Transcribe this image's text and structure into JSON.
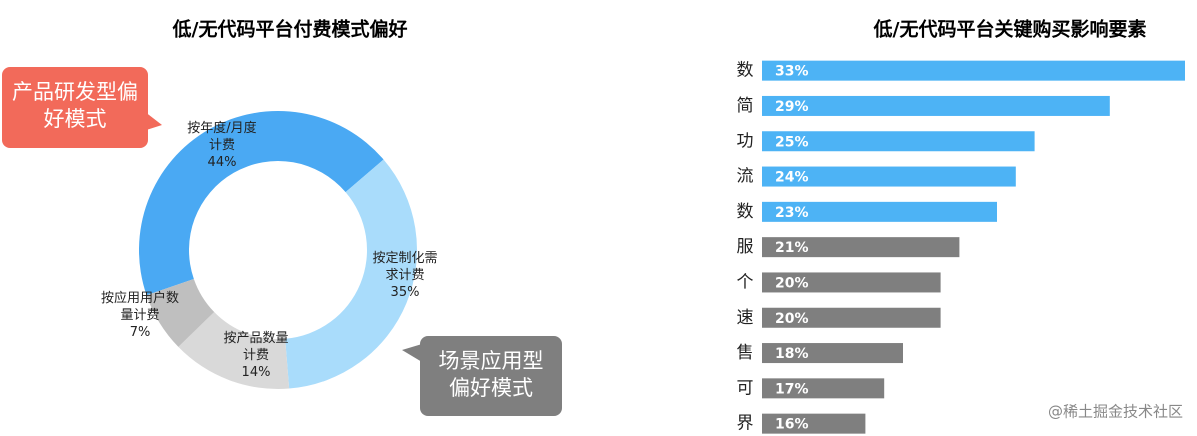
{
  "chart_data": [
    {
      "type": "donut",
      "title": "低/无代码平台付费模式偏好",
      "categories": [
        "按年度/月度计费",
        "按定制化需求计费",
        "按产品数量计费",
        "按应用用户数量计费"
      ],
      "values": [
        44,
        35,
        14,
        7
      ],
      "value_labels": [
        "44%",
        "35%",
        "14%",
        "7%"
      ],
      "colors": [
        "#4aa9f3",
        "#a9dcfb",
        "#d9d9d9",
        "#bfbfbf"
      ],
      "annotations": [
        {
          "text": "产品研发型偏好模式",
          "color": "#f26a5a"
        },
        {
          "text": "场景应用型偏好模式",
          "color": "#7f7f7f"
        }
      ]
    },
    {
      "type": "hbar",
      "title": "低/无代码平台关键购买影响要素",
      "categories": [
        "数",
        "简",
        "功",
        "流",
        "数",
        "服",
        "个",
        "速",
        "售",
        "可",
        "界"
      ],
      "values": [
        33,
        29,
        25,
        24,
        23,
        21,
        20,
        20,
        18,
        17,
        16
      ],
      "value_labels": [
        "33%",
        "29%",
        "25%",
        "24%",
        "23%",
        "21%",
        "20%",
        "20%",
        "18%",
        "17%",
        "16%"
      ],
      "colors": [
        "#4db3f5",
        "#4db3f5",
        "#4db3f5",
        "#4db3f5",
        "#4db3f5",
        "#7f7f7f",
        "#7f7f7f",
        "#7f7f7f",
        "#7f7f7f",
        "#7f7f7f",
        "#7f7f7f"
      ],
      "xlim": [
        10.5,
        33
      ]
    }
  ],
  "watermark": "@稀土掘金技术社区"
}
